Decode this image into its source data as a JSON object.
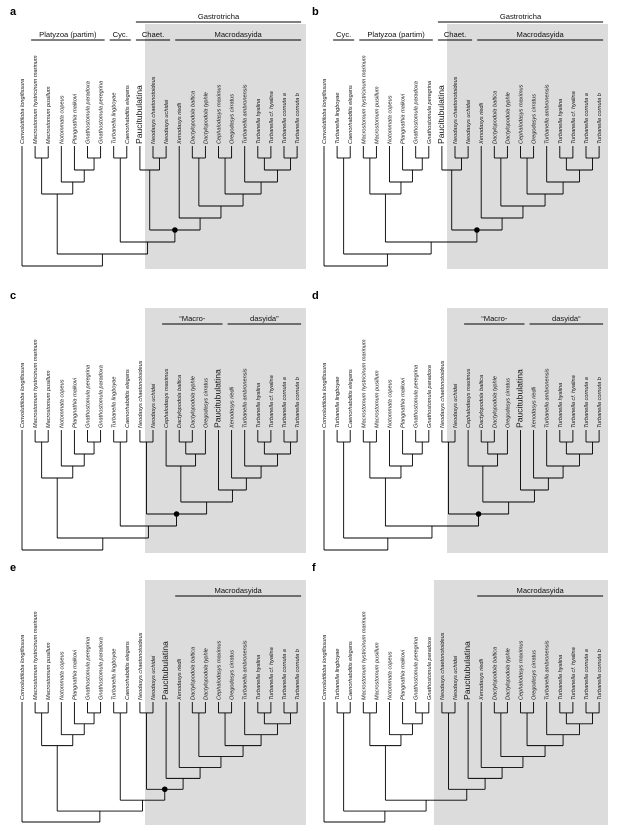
{
  "panels": [
    {
      "label": "a",
      "shade_from": 10,
      "taxa": [
        "Convoluttiloba longifissura",
        "Macrostomum hystricinum marinum",
        "Macrostomum pusillum",
        "Notommata copeus",
        "Plangnathia malkovi",
        "Gnathostomula paradoxa",
        "Gnathostomula peregrina",
        "Turbanella lingboyae",
        "Caenorhabditis elegans",
        "Paucitubulatina",
        "Neodasys chaetonotoideus",
        "Neodasys uchidai",
        "Xenodasys riedli",
        "Dactylopodola baltica",
        "Dactylopodola typhle",
        "Cephalodasys maximus",
        "Oregodasys cirratus",
        "Turbanella ambronensis",
        "Turbanella hyalina",
        "Turbanella cf. hyalina",
        "Turbanella cornuta a",
        "Turbanella cornuta b"
      ],
      "groups": [
        {
          "text": "Platyzoa (partim)",
          "from": 1,
          "to": 6,
          "row": 1
        },
        {
          "text": "Cyc.",
          "from": 7,
          "to": 8,
          "row": 1
        },
        {
          "text": "Gastrotricha",
          "from": 9,
          "to": 21,
          "row": 0
        },
        {
          "text": "Chaet.",
          "from": 9,
          "to": 11,
          "row": 1
        },
        {
          "text": "Macrodasyida",
          "from": 12,
          "to": 21,
          "row": 1
        }
      ],
      "tree": [
        0,
        [
          [
            [
              1,
              2
            ],
            [
              3,
              [
                4,
                [
                  5,
                  6
                ]
              ]
            ]
          ],
          [
            [
              7,
              8
            ],
            [
              [
                9,
                [
                  10,
                  11
                ]
              ],
              [
                12,
                [
                  [
                    13,
                    14
                  ],
                  [
                    [
                      15,
                      16
                    ],
                    [
                      17,
                      [
                        [
                          18,
                          19
                        ],
                        [
                          20,
                          21
                        ]
                      ]
                    ]
                  ]
                ]
              ]
            ]
          ]
        ]
      ],
      "marked_depth": 4
    },
    {
      "label": "b",
      "shade_from": 10,
      "taxa": [
        "Convoluttiloba longifissura",
        "Turbanella lingboyae",
        "Caenorhabditis elegans",
        "Macrostomum hystricinum marinum",
        "Macrostomum pusillum",
        "Notommata copeus",
        "Plangnathia malkovi",
        "Gnathostomula paradoxa",
        "Gnathostomula peregrina",
        "Paucitubulatina",
        "Neodasys chaetonotoideus",
        "Neodasys uchidai",
        "Xenodasys riedli",
        "Dactylopodola baltica",
        "Dactylopodola typhle",
        "Cephalodasys maximus",
        "Oregodasys cirratus",
        "Turbanella ambronensis",
        "Turbanella hyalina",
        "Turbanella cf. hyalina",
        "Turbanella cornuta a",
        "Turbanella cornuta b"
      ],
      "groups": [
        {
          "text": "Cyc.",
          "from": 1,
          "to": 2,
          "row": 1
        },
        {
          "text": "Platyzoa (partim)",
          "from": 3,
          "to": 8,
          "row": 1
        },
        {
          "text": "Gastrotricha",
          "from": 9,
          "to": 21,
          "row": 0
        },
        {
          "text": "Chaet.",
          "from": 9,
          "to": 11,
          "row": 1
        },
        {
          "text": "Macrodasyida",
          "from": 12,
          "to": 21,
          "row": 1
        }
      ],
      "tree": [
        0,
        [
          [
            1,
            2
          ],
          [
            [
              [
                3,
                4
              ],
              [
                5,
                [
                  6,
                  [
                    7,
                    8
                  ]
                ]
              ]
            ],
            [
              [
                9,
                [
                  10,
                  11
                ]
              ],
              [
                12,
                [
                  [
                    13,
                    14
                  ],
                  [
                    [
                      15,
                      16
                    ],
                    [
                      17,
                      [
                        [
                          18,
                          19
                        ],
                        [
                          20,
                          21
                        ]
                      ]
                    ]
                  ]
                ]
              ]
            ]
          ]
        ]
      ],
      "marked_depth": 3
    },
    {
      "label": "c",
      "shade_from": 10,
      "taxa": [
        "Convoluttiloba longifissura",
        "Macrostomum hystricinum marinum",
        "Macrostomum pusillum",
        "Notommata copeus",
        "Plangnathia malkovi",
        "Gnathostomula peregrina",
        "Gnathostomula paradoxa",
        "Turbanella lingboyae",
        "Caenorhabditis elegans",
        "Neodasys chaetonotoideus",
        "Neodasys uchidai",
        "Cephalodasys maximus",
        "Dactylopodola baltica",
        "Dactylopodola typhle",
        "Oregodasys cirratus",
        "Paucitubulatina",
        "Xenodasys riedli",
        "Turbanella ambronensis",
        "Turbanella hyalina",
        "Turbanella cf. hyalina",
        "Turbanella cornuta a",
        "Turbanella cornuta b"
      ],
      "groups": [
        {
          "text": "“Macro-",
          "from": 11,
          "to": 15,
          "row": 1
        },
        {
          "text": "dasyida”",
          "from": 16,
          "to": 21,
          "row": 1
        }
      ],
      "tree": [
        0,
        [
          [
            [
              1,
              2
            ],
            [
              3,
              [
                4,
                [
                  5,
                  6
                ]
              ]
            ]
          ],
          [
            [
              7,
              8
            ],
            [
              [
                9,
                10
              ],
              [
                [
                  11,
                  [
                    [
                      12,
                      13
                    ],
                    14
                  ]
                ],
                [
                  15,
                  [
                    16,
                    [
                      17,
                      [
                        [
                          18,
                          19
                        ],
                        [
                          20,
                          21
                        ]
                      ]
                    ]
                  ]
                ]
              ]
            ]
          ]
        ]
      ],
      "marked_depth": 3
    },
    {
      "label": "d",
      "shade_from": 10,
      "taxa": [
        "Convoluttiloba longifissura",
        "Turbanella lingboyae",
        "Caenorhabditis elegans",
        "Macrostomum hystricinum marinum",
        "Macrostomum pusillum",
        "Notommata copeus",
        "Plangnathia malkovi",
        "Gnathostomula peregrina",
        "Gnathostomula paradoxa",
        "Neodasys chaetonotoideus",
        "Neodasys uchidai",
        "Cephalodasys maximus",
        "Dactylopodola baltica",
        "Dactylopodola typhle",
        "Oregodasys cirratus",
        "Paucitubulatina",
        "Xenodasys riedli",
        "Turbanella ambronensis",
        "Turbanella hyalina",
        "Turbanella cf. hyalina",
        "Turbanella cornuta a",
        "Turbanella cornuta b"
      ],
      "groups": [
        {
          "text": "“Macro-",
          "from": 11,
          "to": 15,
          "row": 1
        },
        {
          "text": "dasyida“",
          "from": 16,
          "to": 21,
          "row": 1
        }
      ],
      "tree": [
        0,
        [
          [
            1,
            2
          ],
          [
            [
              [
                3,
                4
              ],
              [
                5,
                [
                  6,
                  [
                    7,
                    8
                  ]
                ]
              ]
            ],
            [
              [
                9,
                10
              ],
              [
                [
                  11,
                  [
                    [
                      12,
                      13
                    ],
                    14
                  ]
                ],
                [
                  15,
                  [
                    16,
                    [
                      17,
                      [
                        [
                          18,
                          19
                        ],
                        [
                          20,
                          21
                        ]
                      ]
                    ]
                  ]
                ]
              ]
            ]
          ]
        ]
      ],
      "marked_depth": 3
    },
    {
      "label": "e",
      "shade_from": 10,
      "taxa": [
        "Convoluttiloba longifissura",
        "Macrostomum hystricinum marinum",
        "Macrostomum pusillum",
        "Notommata copeus",
        "Plangnathia malkovi",
        "Gnathostomula peregrina",
        "Gnathostomula paradoxa",
        "Turbanella lingboyae",
        "Caenorhabditis elegans",
        "Neodasys chaetonotoideus",
        "Neodasys uchidai",
        "Paucitubulatina",
        "Xenodasys riedli",
        "Dactylopodola baltica",
        "Dactylopodola typhle",
        "Cephalodasys maximus",
        "Oregodasys cirratus",
        "Turbanella ambronensis",
        "Turbanella hyalina",
        "Turbanella cf. hyalina",
        "Turbanella cornuta a",
        "Turbanella cornuta b"
      ],
      "groups": [
        {
          "text": "Macrodasyida",
          "from": 12,
          "to": 21,
          "row": 1
        }
      ],
      "tree": [
        0,
        [
          [
            [
              1,
              2
            ],
            [
              3,
              [
                4,
                [
                  5,
                  6
                ]
              ]
            ]
          ],
          [
            [
              7,
              8
            ],
            [
              [
                9,
                10
              ],
              [
                11,
                [
                  12,
                  [
                    [
                      13,
                      14
                    ],
                    [
                      [
                        15,
                        16
                      ],
                      [
                        17,
                        [
                          [
                            18,
                            19
                          ],
                          [
                            20,
                            21
                          ]
                        ]
                      ]
                    ]
                  ]
                ]
              ]
            ]
          ]
        ]
      ],
      "marked_depth": 3
    },
    {
      "label": "f",
      "shade_from": 9,
      "taxa": [
        "Convoluttiloba longifissura",
        "Turbanella lingboyae",
        "Caenorhabditis elegans",
        "Macrostomum hystricinum marinum",
        "Macrostomum pusillum",
        "Notommata copeus",
        "Plangnathia malkovi",
        "Gnathostomula peregrina",
        "Gnathostomula paradoxa",
        "Neodasys chaetonotoideus",
        "Neodasys uchidai",
        "Paucitubulatina",
        "Xenodasys riedli",
        "Dactylopodola baltica",
        "Dactylopodola typhle",
        "Cephalodasys maximus",
        "Oregodasys cirratus",
        "Turbanella ambronensis",
        "Turbanella hyalina",
        "Turbanella cf. hyalina",
        "Turbanella cornuta a",
        "Turbanella cornuta b"
      ],
      "groups": [
        {
          "text": "Macrodasyida",
          "from": 12,
          "to": 21,
          "row": 1
        }
      ],
      "tree": [
        0,
        [
          [
            1,
            2
          ],
          [
            [
              [
                3,
                4
              ],
              [
                5,
                [
                  6,
                  [
                    7,
                    8
                  ]
                ]
              ]
            ],
            [
              [
                9,
                10
              ],
              [
                11,
                [
                  12,
                  [
                    [
                      13,
                      14
                    ],
                    [
                      [
                        15,
                        16
                      ],
                      [
                        17,
                        [
                          [
                            18,
                            19
                          ],
                          [
                            20,
                            21
                          ]
                        ]
                      ]
                    ]
                  ]
                ]
              ]
            ]
          ]
        ]
      ],
      "marked_depth": 3
    }
  ]
}
